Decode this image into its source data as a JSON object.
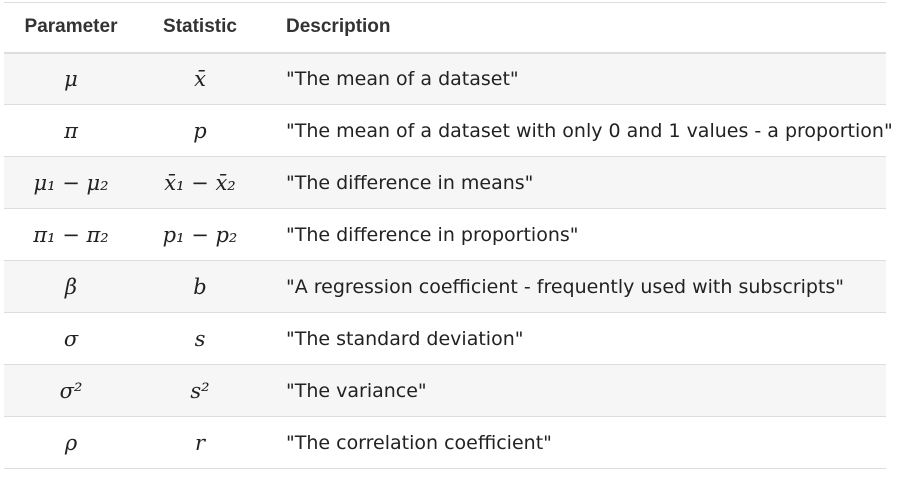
{
  "table": {
    "headers": {
      "parameter": "Parameter",
      "statistic": "Statistic",
      "description": "Description"
    },
    "rows": [
      {
        "parameter": "μ",
        "statistic": "x̄",
        "description": "\"The mean of a dataset\""
      },
      {
        "parameter": "π",
        "statistic": "p",
        "description": "\"The mean of a dataset with only 0 and 1 values - a proportion\""
      },
      {
        "parameter": "μ₁ − μ₂",
        "statistic": "x̄₁ − x̄₂",
        "description": "\"The difference in means\""
      },
      {
        "parameter": "π₁ − π₂",
        "statistic": "p₁ − p₂",
        "description": "\"The difference in proportions\""
      },
      {
        "parameter": "β",
        "statistic": "b",
        "description": "\"A regression coefficient - frequently used with subscripts\""
      },
      {
        "parameter": "σ",
        "statistic": "s",
        "description": "\"The standard deviation\""
      },
      {
        "parameter": "σ²",
        "statistic": "s²",
        "description": "\"The variance\""
      },
      {
        "parameter": "ρ",
        "statistic": "r",
        "description": "\"The correlation coefficient\""
      }
    ]
  }
}
